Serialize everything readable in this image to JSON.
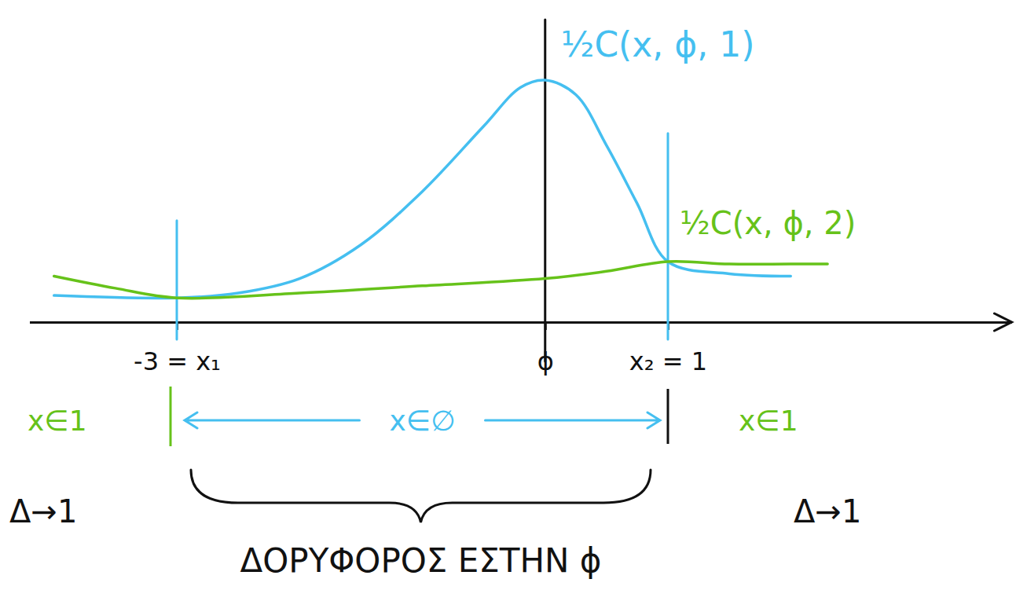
{
  "chart_data": {
    "type": "line",
    "xlim": [
      -4.2,
      3.8
    ],
    "ylim": [
      0,
      1.25
    ],
    "xticks": [
      {
        "value": -3,
        "label": "-3 = x₁"
      },
      {
        "value": 0,
        "label": "ϕ"
      },
      {
        "value": 1,
        "label": "x₂ = 1"
      }
    ],
    "tick_labels": "x",
    "series": [
      {
        "name": "½C(x, ϕ, 1)",
        "color": "#45bff0",
        "x": [
          -4,
          -3,
          -2.5,
          -2,
          -1.5,
          -1,
          -0.5,
          -0.2,
          0,
          0.25,
          0.5,
          0.75,
          1,
          1.5,
          2
        ],
        "values": [
          0.11,
          0.1,
          0.12,
          0.18,
          0.32,
          0.54,
          0.81,
          0.97,
          1.0,
          0.94,
          0.73,
          0.49,
          0.25,
          0.2,
          0.19
        ]
      },
      {
        "name": "½C(x, ϕ, 2)",
        "color": "#66c21a",
        "x": [
          -4,
          -3.5,
          -3,
          -2,
          -1,
          0,
          0.5,
          1,
          1.5,
          2,
          2.3
        ],
        "values": [
          0.19,
          0.14,
          0.1,
          0.12,
          0.15,
          0.18,
          0.21,
          0.25,
          0.24,
          0.24,
          0.24
        ]
      }
    ],
    "annotations": [
      {
        "text": "x∈1",
        "color": "#66c21a"
      },
      {
        "text": "x∈∅",
        "color": "#45bff0"
      },
      {
        "text": "x∈1",
        "color": "#66c21a"
      },
      {
        "text": "Δ→1",
        "color": "#111111"
      },
      {
        "text": "Δ→1",
        "color": "#111111"
      },
      {
        "text": "ΔΟΡΥΦΟΡΟΣ ΕΣΤΗΝ ϕ",
        "color": "#111111"
      }
    ]
  }
}
